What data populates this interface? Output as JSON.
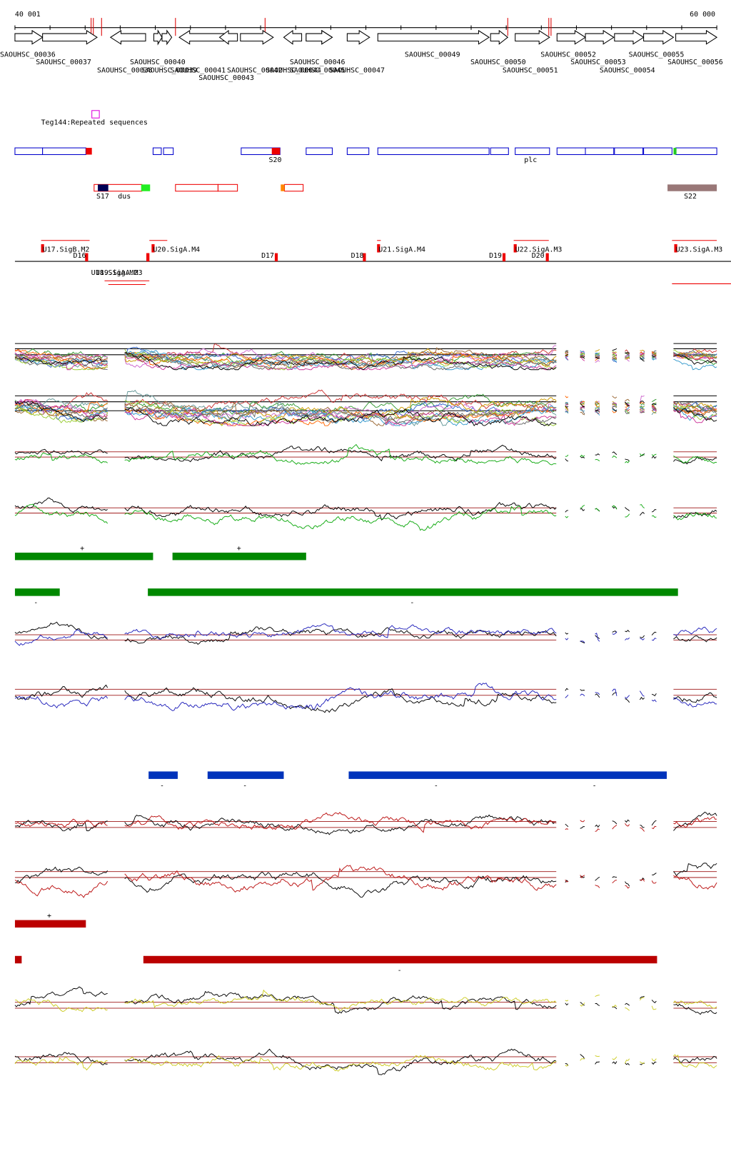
{
  "ruler": {
    "start": "40 001",
    "end": "60 000"
  },
  "genes": [
    "SAOUHSC_00036",
    "SAOUHSC_00037",
    "SAOUHSC_00038",
    "SAOUHSC_00039",
    "SAOUHSC_00040",
    "SAOUHSC_00041",
    "SAOUHSC_00042",
    "SAOUHSC_00043",
    "SAOUHSC_00044",
    "SAOUHSC_00045",
    "SAOUHSC_00046",
    "SAOUHSC_00047",
    "SAOUHSC_00049",
    "SAOUHSC_00050",
    "SAOUHSC_00051",
    "SAOUHSC_00052",
    "SAOUHSC_00053",
    "SAOUHSC_00054",
    "SAOUHSC_00055",
    "SAOUHSC_00056"
  ],
  "repeat_label": "Teg144:Repeated sequences",
  "feature_labels": [
    "S20",
    "plc",
    "S17",
    "dus",
    "S22"
  ],
  "promoter_labels": [
    "U17.SigB.M2",
    "D16",
    "U20.SigA.M4",
    "D17",
    "D18",
    "U21.SigA.M4",
    "D19",
    "U22.SigA.M3",
    "D20",
    "U23.SigA.M3",
    "U18.SigA.M2",
    "U19.SigA.M3"
  ],
  "strand_marks": [
    "+",
    "+",
    "-",
    "-",
    "-",
    "-",
    "-",
    "-",
    "+",
    "-"
  ]
}
